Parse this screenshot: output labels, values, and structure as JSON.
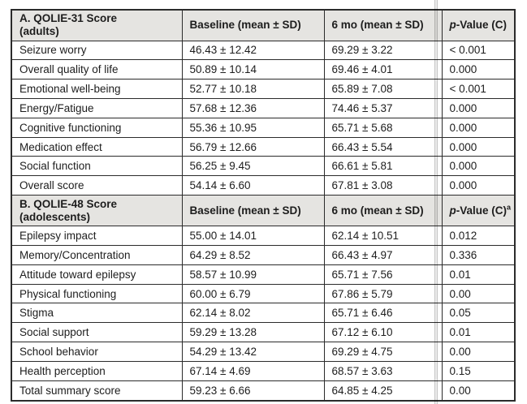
{
  "colors": {
    "header_bg": "#e5e4e1",
    "border": "#2b2b2b",
    "text": "#1d1d1d",
    "crease": "#c4c4c4"
  },
  "table": {
    "sections": [
      {
        "id": "A",
        "header": {
          "title_line1": "A. QOLIE-31 Score",
          "title_line2": "(adults)",
          "baseline": "Baseline (mean ± SD)",
          "six_mo": "6 mo (mean ± SD)",
          "p_italic": "p",
          "p_rest": "-Value (C)",
          "p_sup": ""
        },
        "rows": [
          {
            "label": "Seizure worry",
            "baseline": "46.43 ± 12.42",
            "six_mo": "69.29 ± 3.22",
            "p": "< 0.001"
          },
          {
            "label": "Overall quality of life",
            "baseline": "50.89 ± 10.14",
            "six_mo": "69.46 ± 4.01",
            "p": "0.000"
          },
          {
            "label": "Emotional well-being",
            "baseline": "52.77 ± 10.18",
            "six_mo": "65.89 ± 7.08",
            "p": "< 0.001"
          },
          {
            "label": "Energy/Fatigue",
            "baseline": "57.68 ± 12.36",
            "six_mo": "74.46 ± 5.37",
            "p": "0.000"
          },
          {
            "label": "Cognitive functioning",
            "baseline": "55.36 ± 10.95",
            "six_mo": "65.71 ± 5.68",
            "p": "0.000"
          },
          {
            "label": "Medication effect",
            "baseline": "56.79 ± 12.66",
            "six_mo": "66.43 ± 5.54",
            "p": "0.000"
          },
          {
            "label": "Social function",
            "baseline": "56.25 ± 9.45",
            "six_mo": "66.61 ± 5.81",
            "p": "0.000"
          },
          {
            "label": "Overall score",
            "baseline": "54.14 ± 6.60",
            "six_mo": "67.81 ± 3.08",
            "p": "0.000"
          }
        ]
      },
      {
        "id": "B",
        "header": {
          "title_line1": "B. QOLIE-48 Score",
          "title_line2": "(adolescents)",
          "baseline": "Baseline (mean ± SD)",
          "six_mo": "6 mo (mean ± SD)",
          "p_italic": "p",
          "p_rest": "-Value (C)",
          "p_sup": "a"
        },
        "rows": [
          {
            "label": "Epilepsy impact",
            "baseline": "55.00 ± 14.01",
            "six_mo": "62.14 ± 10.51",
            "p": "0.012"
          },
          {
            "label": "Memory/Concentration",
            "baseline": "64.29 ± 8.52",
            "six_mo": "66.43 ± 4.97",
            "p": "0.336"
          },
          {
            "label": "Attitude toward epilepsy",
            "baseline": "58.57 ± 10.99",
            "six_mo": "65.71 ± 7.56",
            "p": "0.01"
          },
          {
            "label": "Physical functioning",
            "baseline": "60.00 ± 6.79",
            "six_mo": "67.86 ± 5.79",
            "p": "0.00"
          },
          {
            "label": "Stigma",
            "baseline": "62.14 ± 8.02",
            "six_mo": "65.71 ± 6.46",
            "p": "0.05"
          },
          {
            "label": "Social support",
            "baseline": "59.29 ± 13.28",
            "six_mo": "67.12 ± 6.10",
            "p": "0.01"
          },
          {
            "label": "School behavior",
            "baseline": "54.29 ± 13.42",
            "six_mo": "69.29 ± 4.75",
            "p": "0.00"
          },
          {
            "label": "Health perception",
            "baseline": "67.14 ± 4.69",
            "six_mo": "68.57 ± 3.63",
            "p": "0.15"
          },
          {
            "label": "Total summary score",
            "baseline": "59.23 ± 6.66",
            "six_mo": "64.85 ± 4.25",
            "p": "0.00"
          }
        ]
      }
    ]
  }
}
